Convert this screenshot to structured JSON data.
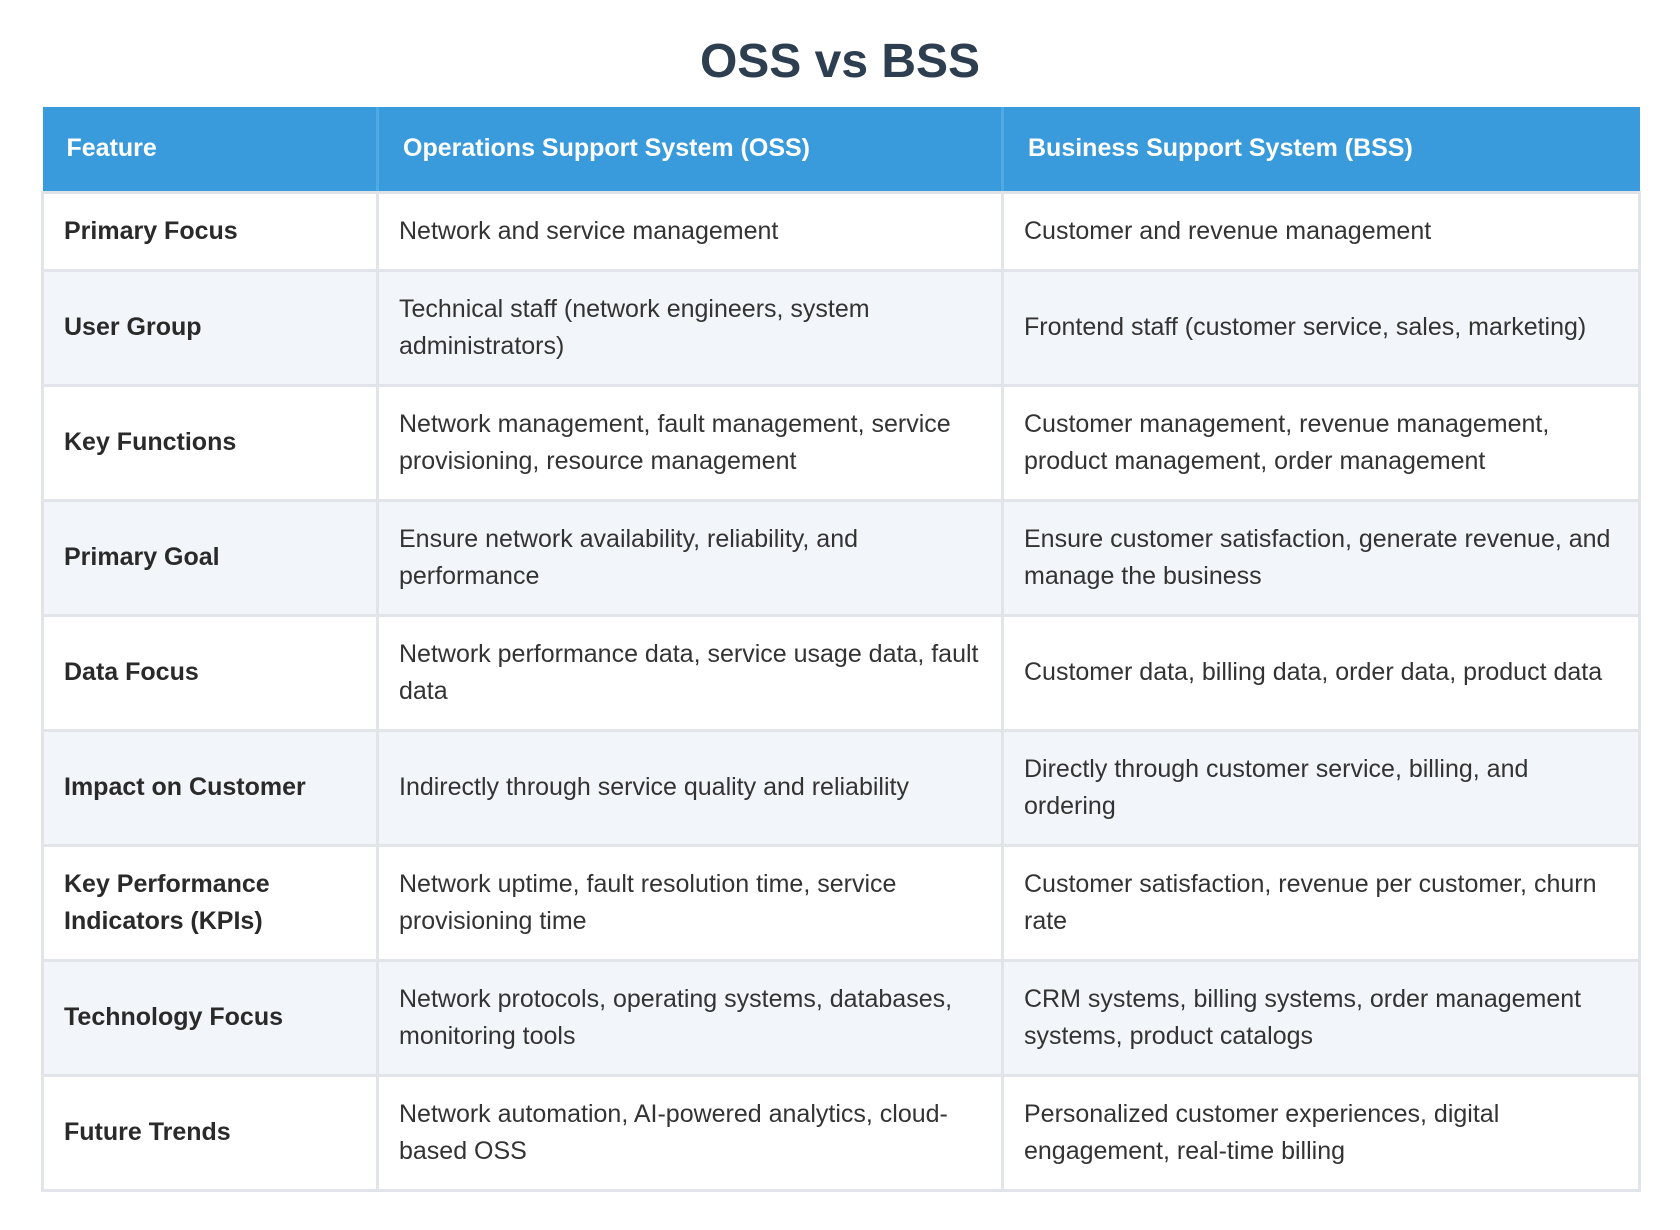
{
  "title": "OSS vs BSS",
  "table": {
    "headers": [
      "Feature",
      "Operations Support System (OSS)",
      "Business Support System (BSS)"
    ],
    "rows": [
      {
        "feature": "Primary Focus",
        "oss": "Network and service management",
        "bss": "Customer and revenue management"
      },
      {
        "feature": "User Group",
        "oss": "Technical staff (network engineers, system administrators)",
        "bss": "Frontend staff (customer service, sales, marketing)"
      },
      {
        "feature": "Key Functions",
        "oss": "Network management, fault management, service provisioning, resource management",
        "bss": "Customer management, revenue management, product management, order management"
      },
      {
        "feature": "Primary Goal",
        "oss": "Ensure network availability, reliability, and performance",
        "bss": "Ensure customer satisfaction, generate revenue, and manage the business"
      },
      {
        "feature": "Data Focus",
        "oss": "Network performance data, service usage data, fault data",
        "bss": "Customer data, billing data, order data, product data"
      },
      {
        "feature": "Impact on Customer",
        "oss": "Indirectly through service quality and reliability",
        "bss": "Directly through customer service, billing, and ordering"
      },
      {
        "feature": "Key Performance Indicators (KPIs)",
        "oss": "Network uptime, fault resolution time, service provisioning time",
        "bss": "Customer satisfaction, revenue per customer, churn rate"
      },
      {
        "feature": "Technology Focus",
        "oss": "Network protocols, operating systems, databases, monitoring tools",
        "bss": "CRM systems, billing systems, order management systems, product catalogs"
      },
      {
        "feature": "Future Trends",
        "oss": "Network automation, AI-powered analytics, cloud-based OSS",
        "bss": "Personalized customer experiences, digital engagement, real-time billing"
      }
    ]
  }
}
